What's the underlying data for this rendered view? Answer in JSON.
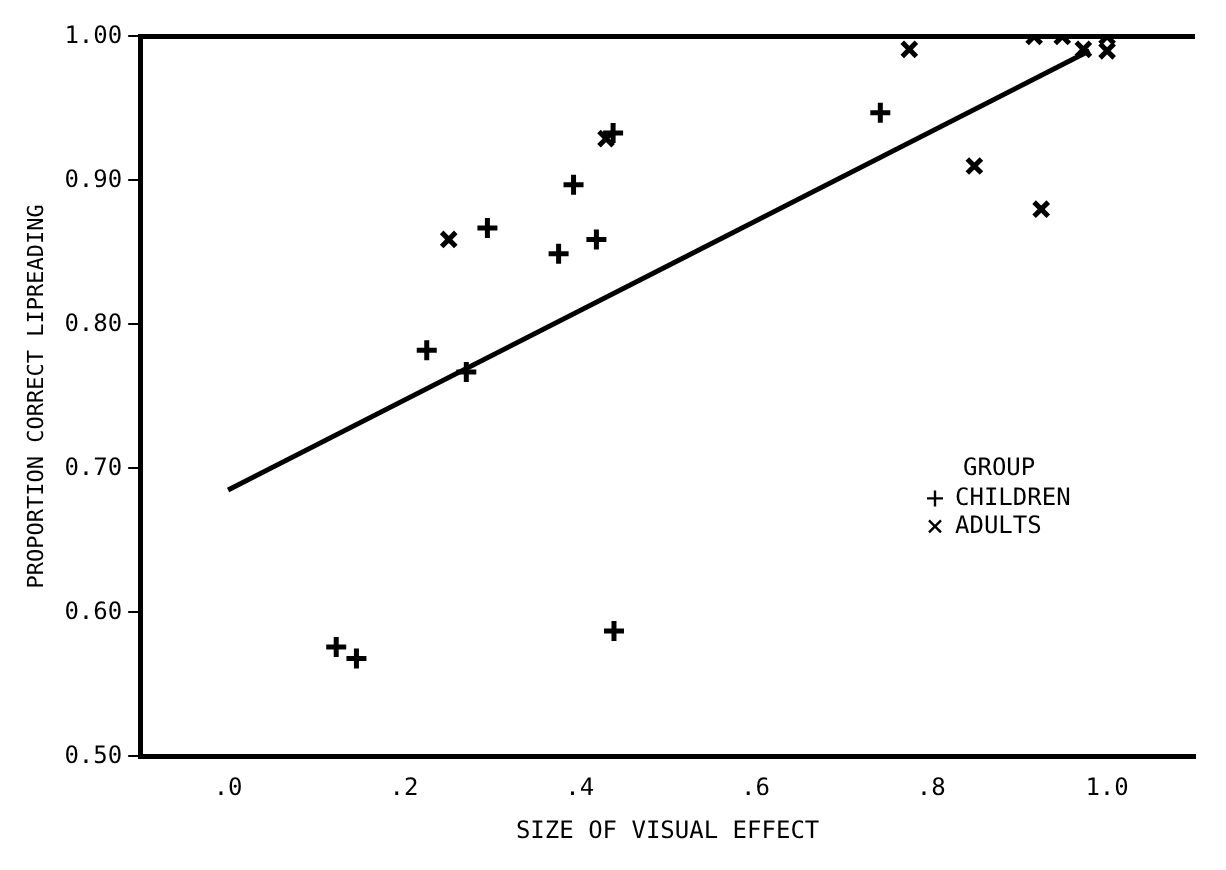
{
  "chart_data": {
    "type": "scatter",
    "xlabel": "SIZE OF VISUAL EFFECT",
    "ylabel": "PROPORTION CORRECT LIPREADING",
    "legend_title": "GROUP",
    "legend": "right",
    "xlim": [
      -0.1,
      1.1
    ],
    "xticks": [
      {
        "value": 0,
        "label": ".0"
      },
      {
        "value": 0.2,
        "label": ".2"
      },
      {
        "value": 0.4,
        "label": ".4"
      },
      {
        "value": 0.6,
        "label": ".6"
      },
      {
        "value": 0.8,
        "label": ".8"
      },
      {
        "value": 1.0,
        "label": "1.0"
      }
    ],
    "ylim": [
      0.5,
      1.0
    ],
    "yticks": [
      {
        "value": 0.5,
        "label": "0.50"
      },
      {
        "value": 0.6,
        "label": "0.60"
      },
      {
        "value": 0.7,
        "label": "0.70"
      },
      {
        "value": 0.8,
        "label": "0.80"
      },
      {
        "value": 0.9,
        "label": "0.90"
      },
      {
        "value": 1.0,
        "label": "1.00"
      }
    ],
    "grid": false,
    "series": [
      {
        "name": "CHILDREN",
        "marker": "cross",
        "color": "#000000",
        "x": [
          0.226,
          0.271,
          0.295,
          0.376,
          0.393,
          0.419,
          0.438,
          0.742,
          0.123,
          0.146,
          0.439
        ],
        "values": [
          0.782,
          0.767,
          0.867,
          0.849,
          0.897,
          0.859,
          0.933,
          0.947,
          0.576,
          0.568,
          0.587
        ]
      },
      {
        "name": "ADULTS",
        "marker": "x",
        "color": "#000000",
        "x": [
          0.251,
          0.43,
          0.775,
          0.849,
          0.925,
          0.917,
          0.949,
          0.973,
          1.0,
          1.0
        ],
        "values": [
          0.859,
          0.929,
          0.991,
          0.91,
          0.88,
          1.0,
          1.0,
          0.991,
          1.0,
          0.99
        ]
      },
      {
        "type": "line",
        "marker": "none",
        "line_style": "solid",
        "color": "#000000",
        "x": [
          0,
          0.98
        ],
        "values": [
          0.685,
          0.99
        ]
      }
    ]
  }
}
